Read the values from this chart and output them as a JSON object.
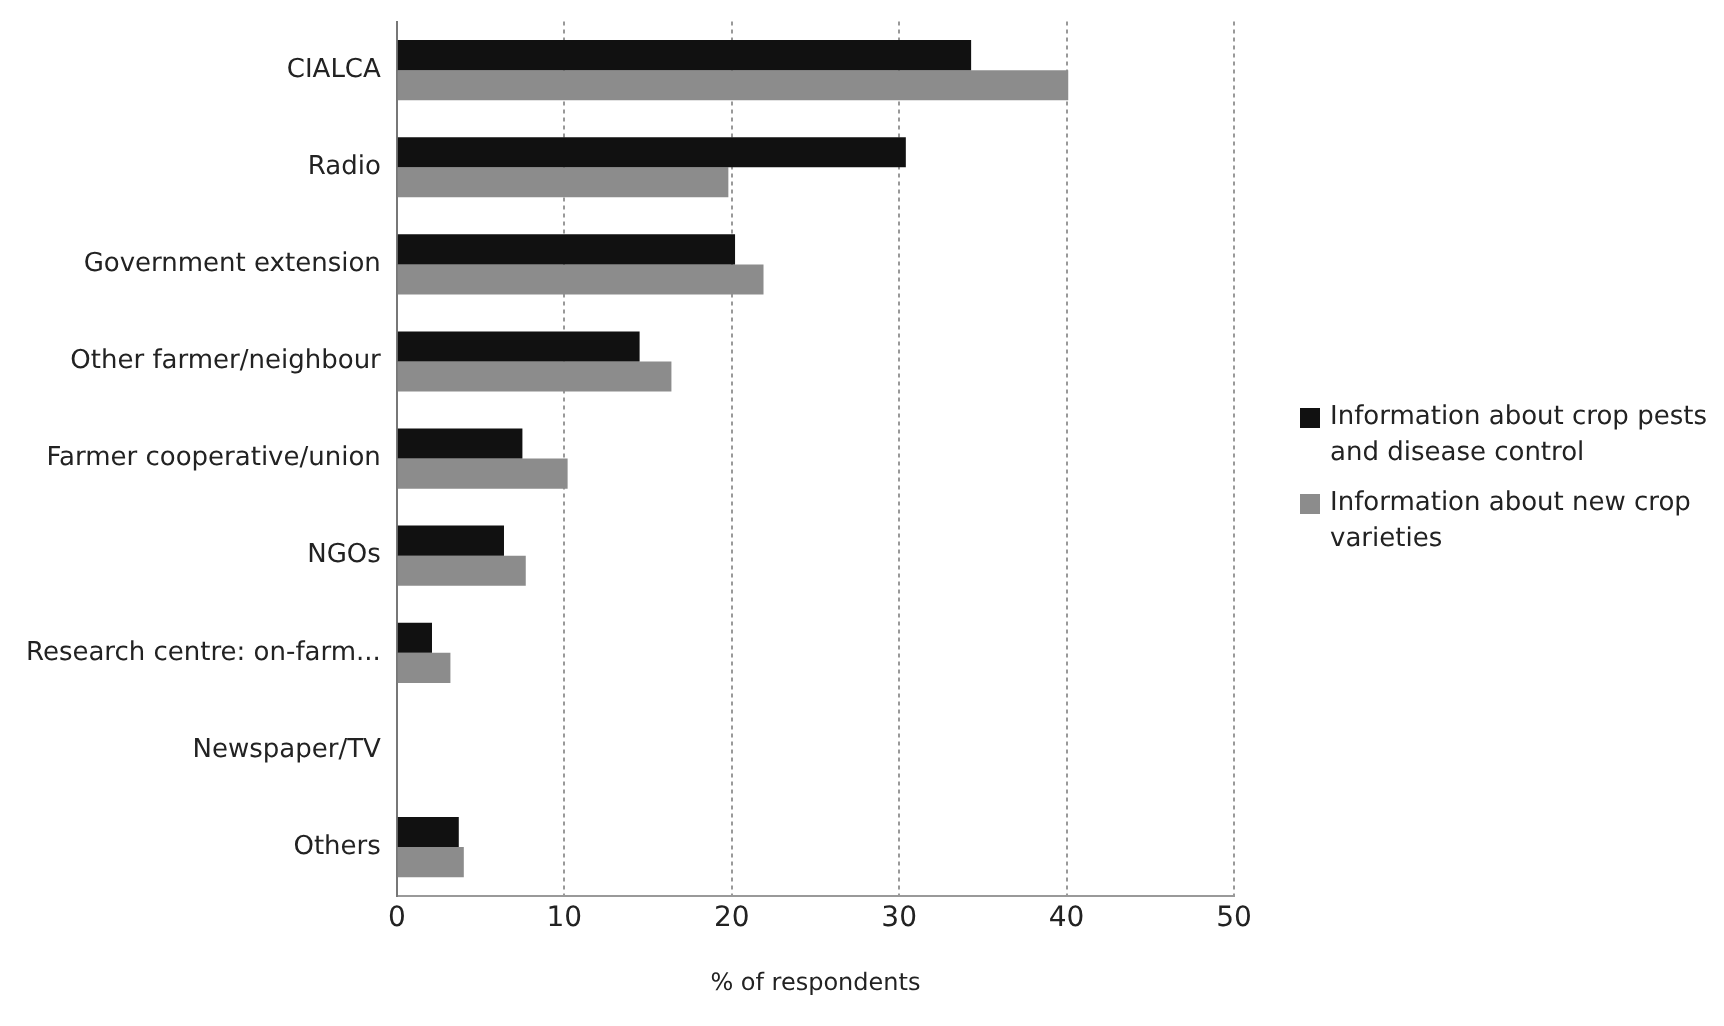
{
  "chart_data": {
    "type": "bar",
    "orientation": "horizontal",
    "xlabel": "% of respondents",
    "categories": [
      "CIALCA",
      "Radio",
      "Government extension",
      "Other farmer/neighbour",
      "Farmer cooperative/union",
      "NGOs",
      "Research centre: on-farm...",
      "Newspaper/TV",
      "Others"
    ],
    "series": [
      {
        "name": "Information about crop pests and disease control",
        "color": "#111111",
        "values": [
          34.3,
          30.4,
          20.2,
          14.5,
          7.5,
          6.4,
          2.1,
          0,
          3.7
        ]
      },
      {
        "name": "Information about new crop varieties",
        "color": "#8c8c8c",
        "values": [
          40.1,
          19.8,
          21.9,
          16.4,
          10.2,
          7.7,
          3.2,
          0,
          4.0
        ]
      }
    ],
    "xlim": [
      0,
      50
    ],
    "xticks": [
      0,
      10,
      20,
      30,
      40,
      50
    ],
    "grid": "x",
    "legend": "right"
  }
}
